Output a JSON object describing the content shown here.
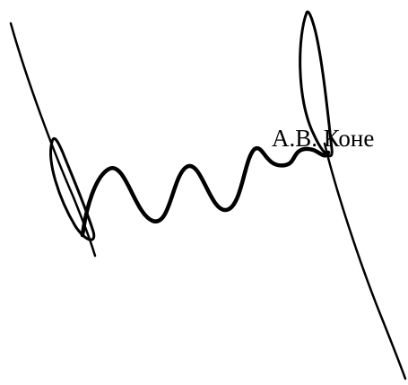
{
  "document": {
    "signer_name": "А.В. Коне",
    "ink_color": "#000000",
    "background_color": "#ffffff"
  }
}
